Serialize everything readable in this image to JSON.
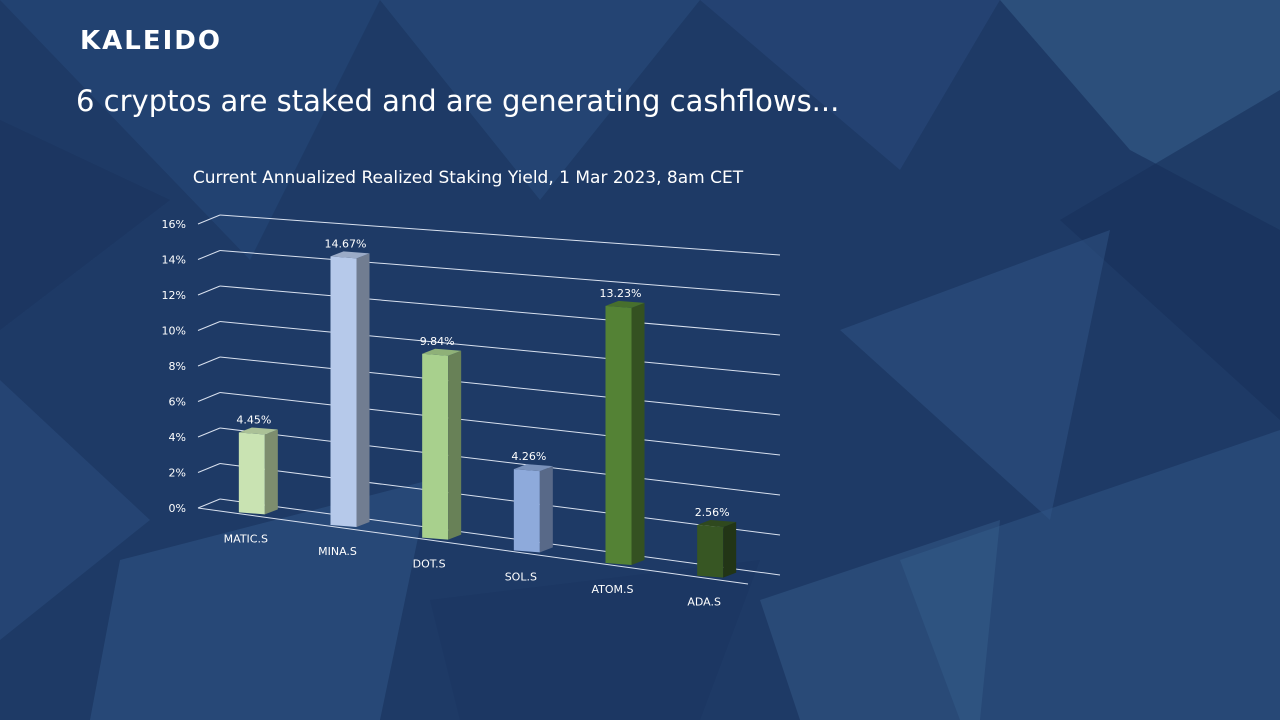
{
  "slide": {
    "logo": "KALEIDO",
    "headline": "6 cryptos are staked and are generating cashflows..."
  },
  "colors": {
    "background": "#1e3a66",
    "grid": "#d9e1ef",
    "text": "#ffffff"
  },
  "chart_data": {
    "type": "bar",
    "title": "Current Annualized Realized Staking Yield, 1 Mar 2023, 8am CET",
    "categories": [
      "MATIC.S",
      "MINA.S",
      "DOT.S",
      "SOL.S",
      "ATOM.S",
      "ADA.S"
    ],
    "values": [
      4.45,
      14.67,
      9.84,
      4.26,
      13.23,
      2.56
    ],
    "data_labels": [
      "4.45%",
      "14.67%",
      "9.84%",
      "4.26%",
      "13.23%",
      "2.56%"
    ],
    "bar_colors": [
      "#c9e3b2",
      "#b6c9ea",
      "#a8d08d",
      "#8eaadb",
      "#548235",
      "#375623"
    ],
    "ylim": [
      0,
      16
    ],
    "yticks": [
      "0%",
      "2%",
      "4%",
      "6%",
      "8%",
      "10%",
      "12%",
      "14%",
      "16%"
    ],
    "grid": true,
    "legend": "none",
    "style": "3d-perspective"
  }
}
